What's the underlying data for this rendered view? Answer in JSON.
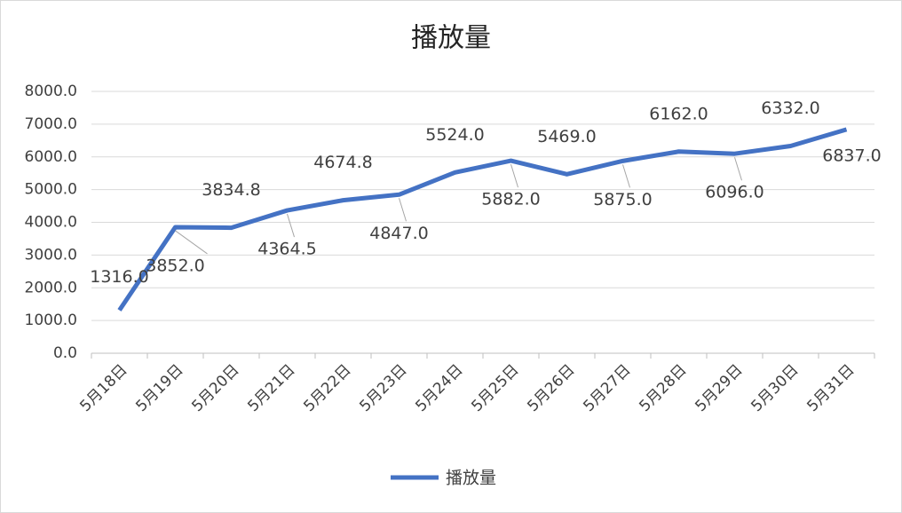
{
  "chart_data": {
    "type": "line",
    "title": "播放量",
    "categories": [
      "5月18日",
      "5月19日",
      "5月20日",
      "5月21日",
      "5月22日",
      "5月23日",
      "5月24日",
      "5月25日",
      "5月26日",
      "5月27日",
      "5月28日",
      "5月29日",
      "5月30日",
      "5月31日"
    ],
    "series": [
      {
        "name": "播放量",
        "color": "#4472c4",
        "values": [
          1316.0,
          3852.0,
          3834.8,
          4364.5,
          4674.8,
          4847.0,
          5524.0,
          5882.0,
          5469.0,
          5875.0,
          6162.0,
          6096.0,
          6332.0,
          6837.0
        ],
        "value_labels": [
          "1316.0",
          "3852.0",
          "3834.8",
          "4364.5",
          "4674.8",
          "4847.0",
          "5524.0",
          "5882.0",
          "5469.0",
          "5875.0",
          "6162.0",
          "6096.0",
          "6332.0",
          "6837.0"
        ]
      }
    ],
    "ylim": [
      0,
      8000
    ],
    "yticks": [
      {
        "value": 0,
        "label": "0.0"
      },
      {
        "value": 1000,
        "label": "1000.0"
      },
      {
        "value": 2000,
        "label": "2000.0"
      },
      {
        "value": 3000,
        "label": "3000.0"
      },
      {
        "value": 4000,
        "label": "4000.0"
      },
      {
        "value": 5000,
        "label": "5000.0"
      },
      {
        "value": 6000,
        "label": "6000.0"
      },
      {
        "value": 7000,
        "label": "7000.0"
      },
      {
        "value": 8000,
        "label": "8000.0"
      }
    ],
    "grid": true,
    "legend": "bottom"
  }
}
